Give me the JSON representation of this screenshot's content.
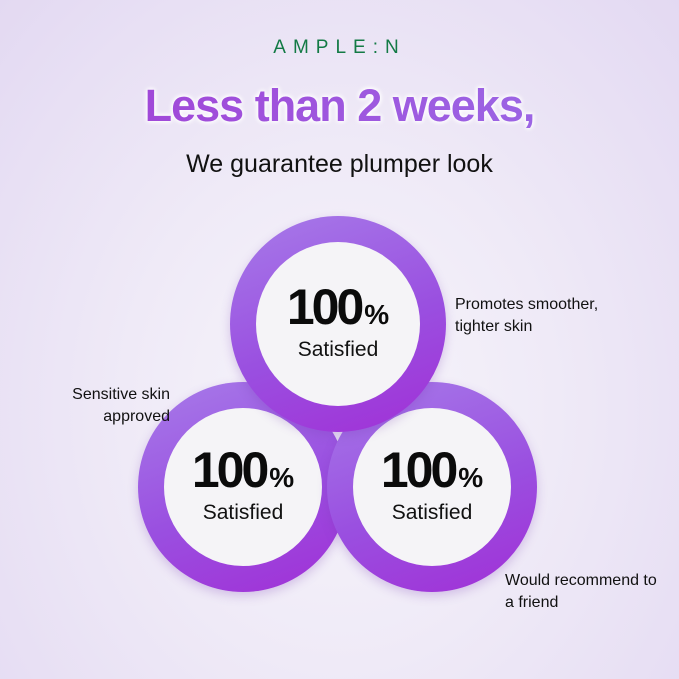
{
  "brand": "AMPLE:N",
  "headline": "Less than 2 weeks,",
  "subheadline": "We guarantee plumper look",
  "colors": {
    "brand": "#137a45",
    "accent": "#9a4fe0"
  },
  "circles": [
    {
      "value": "100",
      "unit": "%",
      "label": "Satisfied",
      "note": "Promotes smoother, tighter skin"
    },
    {
      "value": "100",
      "unit": "%",
      "label": "Satisfied",
      "note": "Sensitive skin approved"
    },
    {
      "value": "100",
      "unit": "%",
      "label": "Satisfied",
      "note": "Would recommend to a friend"
    }
  ]
}
